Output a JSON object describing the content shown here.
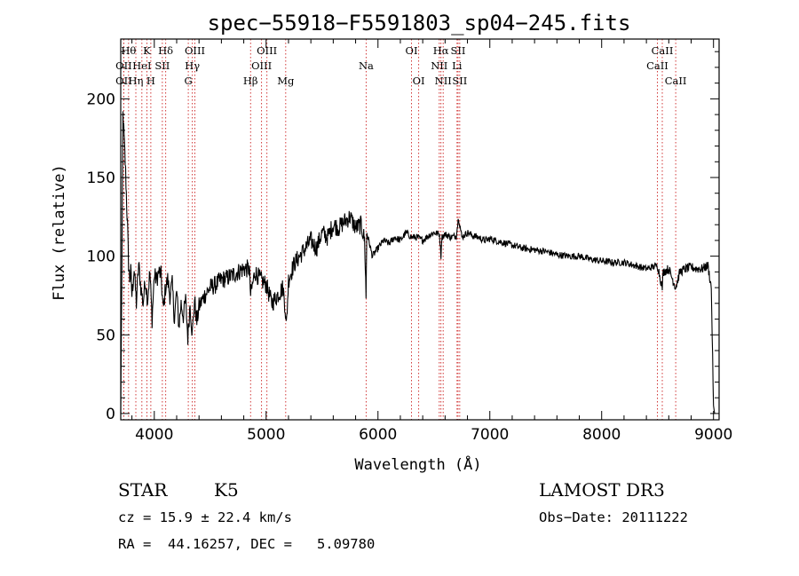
{
  "chart_data": {
    "type": "line",
    "title": "spec−55918−F5591803_sp04−245.fits",
    "xlabel": "Wavelength (Å)",
    "ylabel": "Flux (relative)",
    "xlim": [
      3700,
      9050
    ],
    "ylim": [
      -4,
      238
    ],
    "x_ticks": [
      {
        "value": 4000,
        "label": "4000"
      },
      {
        "value": 5000,
        "label": "5000"
      },
      {
        "value": 6000,
        "label": "6000"
      },
      {
        "value": 7000,
        "label": "7000"
      },
      {
        "value": 8000,
        "label": "8000"
      },
      {
        "value": 9000,
        "label": "9000"
      }
    ],
    "y_ticks": [
      {
        "value": 0,
        "label": "0"
      },
      {
        "value": 50,
        "label": "50"
      },
      {
        "value": 100,
        "label": "100"
      },
      {
        "value": 150,
        "label": "150"
      },
      {
        "value": 200,
        "label": "200"
      }
    ],
    "series": [
      {
        "name": "flux",
        "x": [
          3700,
          3710,
          3720,
          3730,
          3740,
          3750,
          3760,
          3770,
          3780,
          3790,
          3800,
          3820,
          3840,
          3860,
          3880,
          3900,
          3920,
          3940,
          3960,
          3980,
          4000,
          4020,
          4040,
          4060,
          4080,
          4100,
          4120,
          4140,
          4160,
          4180,
          4200,
          4220,
          4240,
          4260,
          4280,
          4300,
          4320,
          4340,
          4360,
          4380,
          4400,
          4450,
          4500,
          4550,
          4600,
          4650,
          4700,
          4750,
          4800,
          4850,
          4861,
          4900,
          4950,
          5000,
          5050,
          5100,
          5150,
          5170,
          5180,
          5200,
          5250,
          5300,
          5350,
          5400,
          5450,
          5500,
          5550,
          5600,
          5650,
          5700,
          5750,
          5800,
          5850,
          5880,
          5890,
          5893,
          5896,
          5900,
          5950,
          6000,
          6050,
          6100,
          6150,
          6200,
          6250,
          6300,
          6350,
          6400,
          6450,
          6500,
          6550,
          6563,
          6570,
          6600,
          6650,
          6700,
          6720,
          6750,
          6800,
          6850,
          6900,
          6950,
          7000,
          7050,
          7100,
          7150,
          7200,
          7250,
          7300,
          7400,
          7500,
          7600,
          7700,
          7800,
          7900,
          8000,
          8100,
          8200,
          8300,
          8400,
          8500,
          8542,
          8550,
          8600,
          8662,
          8700,
          8750,
          8800,
          8850,
          8900,
          8950,
          8980,
          9000,
          9010
        ],
        "y": [
          0,
          90,
          190,
          175,
          160,
          140,
          120,
          95,
          85,
          90,
          75,
          92,
          70,
          95,
          80,
          70,
          85,
          72,
          90,
          60,
          88,
          85,
          90,
          88,
          65,
          80,
          85,
          75,
          82,
          60,
          78,
          55,
          70,
          62,
          72,
          48,
          70,
          50,
          72,
          58,
          68,
          75,
          80,
          82,
          85,
          86,
          88,
          90,
          92,
          92,
          75,
          90,
          85,
          82,
          70,
          75,
          80,
          68,
          55,
          85,
          95,
          100,
          105,
          110,
          105,
          115,
          112,
          120,
          118,
          122,
          125,
          118,
          120,
          110,
          85,
          72,
          95,
          115,
          100,
          105,
          110,
          108,
          112,
          110,
          115,
          112,
          112,
          110,
          113,
          115,
          114,
          100,
          112,
          114,
          112,
          113,
          125,
          112,
          115,
          113,
          112,
          110,
          111,
          110,
          109,
          108,
          107,
          106,
          105,
          104,
          103,
          101,
          100,
          100,
          98,
          97,
          96,
          96,
          94,
          92,
          94,
          80,
          90,
          92,
          80,
          90,
          92,
          93,
          92,
          92,
          94,
          80,
          5,
          0
        ]
      }
    ],
    "spectral_lines": [
      {
        "x": 3727,
        "label": "OII",
        "row": 2
      },
      {
        "x": 3727,
        "label": "OII",
        "row": 3
      },
      {
        "x": 3770,
        "label": "Hθ",
        "row": 1
      },
      {
        "x": 3835,
        "label": "Hη",
        "row": 3
      },
      {
        "x": 3889,
        "label": "HeI",
        "row": 2
      },
      {
        "x": 3934,
        "label": "K",
        "row": 1
      },
      {
        "x": 3969,
        "label": "H",
        "row": 3
      },
      {
        "x": 4072,
        "label": "SII",
        "row": 2
      },
      {
        "x": 4102,
        "label": "Hδ",
        "row": 1
      },
      {
        "x": 4304,
        "label": "G",
        "row": 3
      },
      {
        "x": 4340,
        "label": "Hγ",
        "row": 2
      },
      {
        "x": 4363,
        "label": "OIII",
        "row": 1
      },
      {
        "x": 4861,
        "label": "Hβ",
        "row": 3
      },
      {
        "x": 4959,
        "label": "OIII",
        "row": 2
      },
      {
        "x": 5007,
        "label": "OIII",
        "row": 1
      },
      {
        "x": 5175,
        "label": "Mg",
        "row": 3
      },
      {
        "x": 5894,
        "label": "Na",
        "row": 2
      },
      {
        "x": 6300,
        "label": "OI",
        "row": 1
      },
      {
        "x": 6364,
        "label": "OI",
        "row": 3
      },
      {
        "x": 6548,
        "label": "NII",
        "row": 2
      },
      {
        "x": 6563,
        "label": "Hα",
        "row": 1
      },
      {
        "x": 6583,
        "label": "NII",
        "row": 3
      },
      {
        "x": 6707,
        "label": "Li",
        "row": 2
      },
      {
        "x": 6716,
        "label": "SII",
        "row": 1
      },
      {
        "x": 6731,
        "label": "SII",
        "row": 3
      },
      {
        "x": 8498,
        "label": "CaII",
        "row": 2
      },
      {
        "x": 8542,
        "label": "CaII",
        "row": 1
      },
      {
        "x": 8662,
        "label": "CaII",
        "row": 3
      }
    ]
  },
  "info": {
    "object_class": "STAR",
    "subclass": "K5",
    "survey": "LAMOST DR3",
    "redshift": "cz = 15.9 ± 22.4 km/s",
    "obs_date": "Obs−Date: 20111222",
    "coords": "RA =  44.16257, DEC =   5.09780"
  },
  "colors": {
    "line_marker": "#cc2222",
    "spectrum": "#000000",
    "axes": "#000000"
  }
}
